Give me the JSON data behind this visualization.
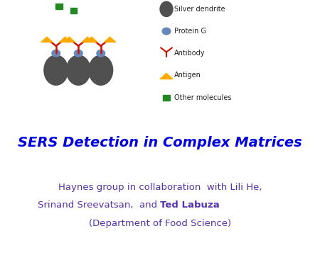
{
  "title": "SERS Detection in Complex Matrices",
  "title_color": "#0000DD",
  "title_fontsize": 14,
  "subtitle_line1": "Haynes group in collaboration  with Lili He,",
  "subtitle_line2_normal": "Srinand Sreevatsan,  and ",
  "subtitle_line2_bold": "Ted Labuza",
  "subtitle_line3": "(Department of Food Science)",
  "subtitle_color": "#5533AA",
  "subtitle_fontsize": 9.5,
  "legend_labels": [
    "Silver dendrite",
    "Protein G",
    "Antibody",
    "Antigen",
    "Other molecules"
  ],
  "legend_colors": [
    "#505050",
    "#6688BB",
    "#CC1100",
    "#FFAA00",
    "#228822"
  ],
  "background_color": "#FFFFFF",
  "dendrite_color": "#505050",
  "protein_g_color": "#6688BB",
  "antibody_color": "#CC1100",
  "antigen_color": "#FFAA00",
  "other_color": "#228822"
}
